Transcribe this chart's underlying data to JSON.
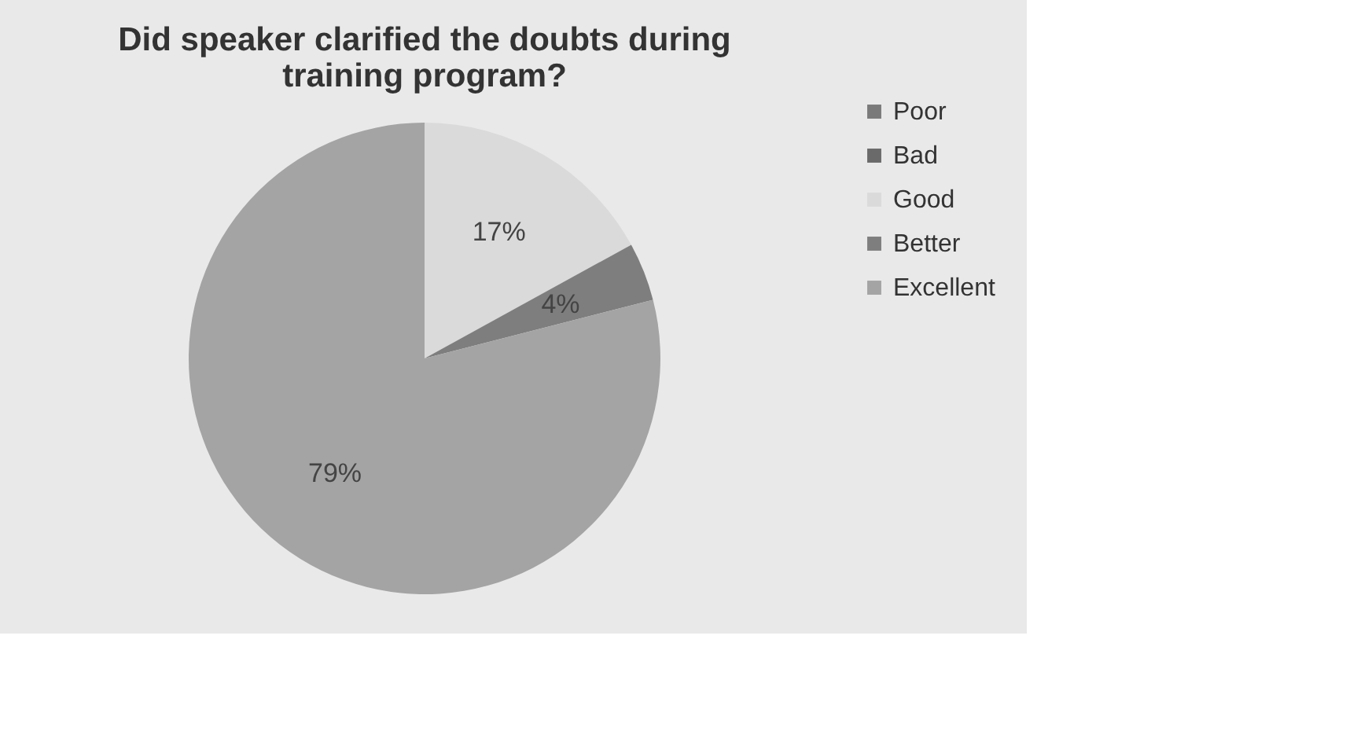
{
  "chart_data": {
    "type": "pie",
    "title": "Did speaker clarified the doubts during training program?",
    "categories": [
      "Poor",
      "Bad",
      "Good",
      "Better",
      "Excellent"
    ],
    "values": [
      0,
      0,
      17,
      4,
      79
    ],
    "colors": [
      "#7a7a7a",
      "#6a6a6a",
      "#dadada",
      "#7e7e7e",
      "#a4a4a4"
    ],
    "value_labels": [
      null,
      null,
      "17%",
      "4%",
      "79%"
    ],
    "legend": "right"
  }
}
